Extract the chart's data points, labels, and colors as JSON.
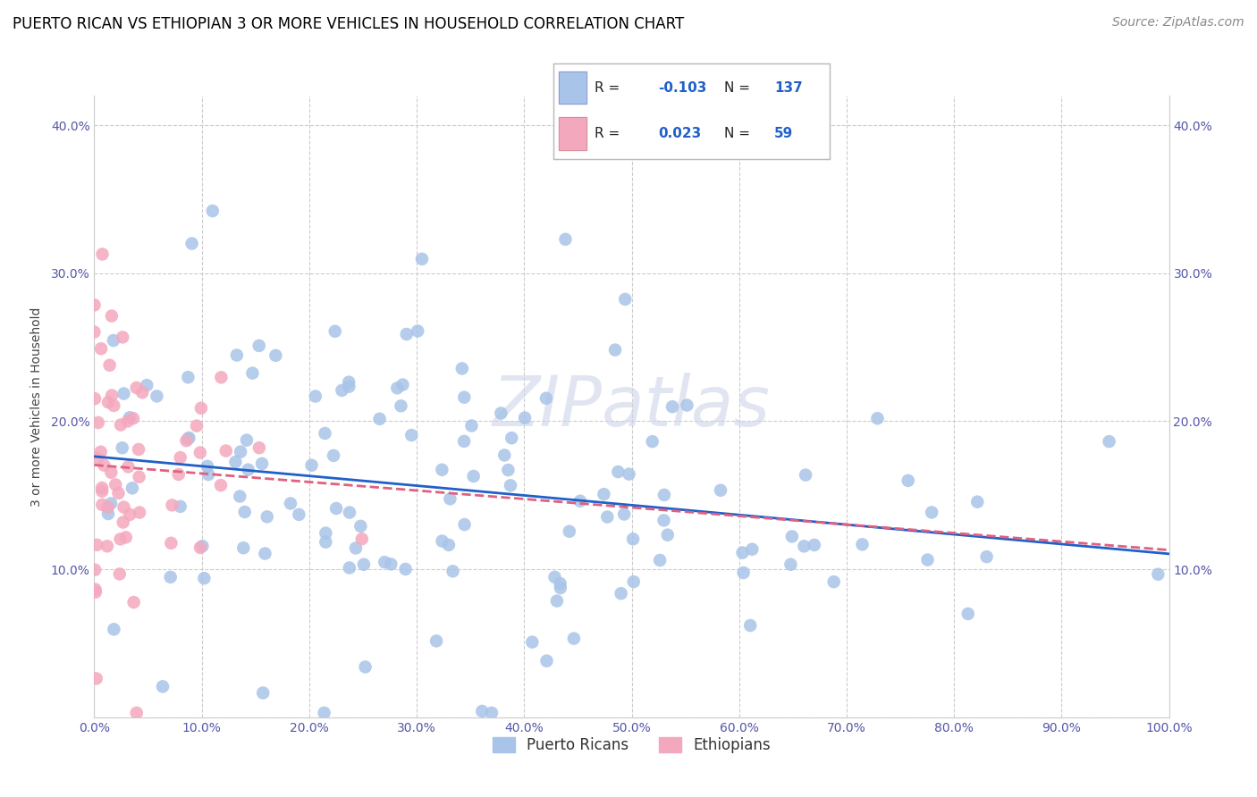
{
  "title": "PUERTO RICAN VS ETHIOPIAN 3 OR MORE VEHICLES IN HOUSEHOLD CORRELATION CHART",
  "source": "Source: ZipAtlas.com",
  "ylabel": "3 or more Vehicles in Household",
  "watermark": "ZIPatlas",
  "xlim": [
    0,
    1.0
  ],
  "ylim": [
    0,
    0.42
  ],
  "xticks": [
    0.0,
    0.1,
    0.2,
    0.3,
    0.4,
    0.5,
    0.6,
    0.7,
    0.8,
    0.9,
    1.0
  ],
  "yticks": [
    0.0,
    0.1,
    0.2,
    0.3,
    0.4
  ],
  "xticklabels": [
    "0.0%",
    "10.0%",
    "20.0%",
    "30.0%",
    "40.0%",
    "50.0%",
    "60.0%",
    "70.0%",
    "80.0%",
    "90.0%",
    "100.0%"
  ],
  "yticklabels": [
    "",
    "10.0%",
    "20.0%",
    "30.0%",
    "40.0%"
  ],
  "blue_color": "#a8c4e8",
  "pink_color": "#f4a8be",
  "blue_line_color": "#2060c8",
  "pink_line_color": "#e06080",
  "legend_blue_label": "Puerto Ricans",
  "legend_pink_label": "Ethiopians",
  "R_blue": -0.103,
  "N_blue": 137,
  "R_pink": 0.023,
  "N_pink": 59,
  "blue_seed": 42,
  "pink_seed": 7,
  "title_fontsize": 12,
  "source_fontsize": 10,
  "axis_label_fontsize": 10,
  "tick_fontsize": 10,
  "legend_fontsize": 12,
  "stat_color": "#2060c8"
}
